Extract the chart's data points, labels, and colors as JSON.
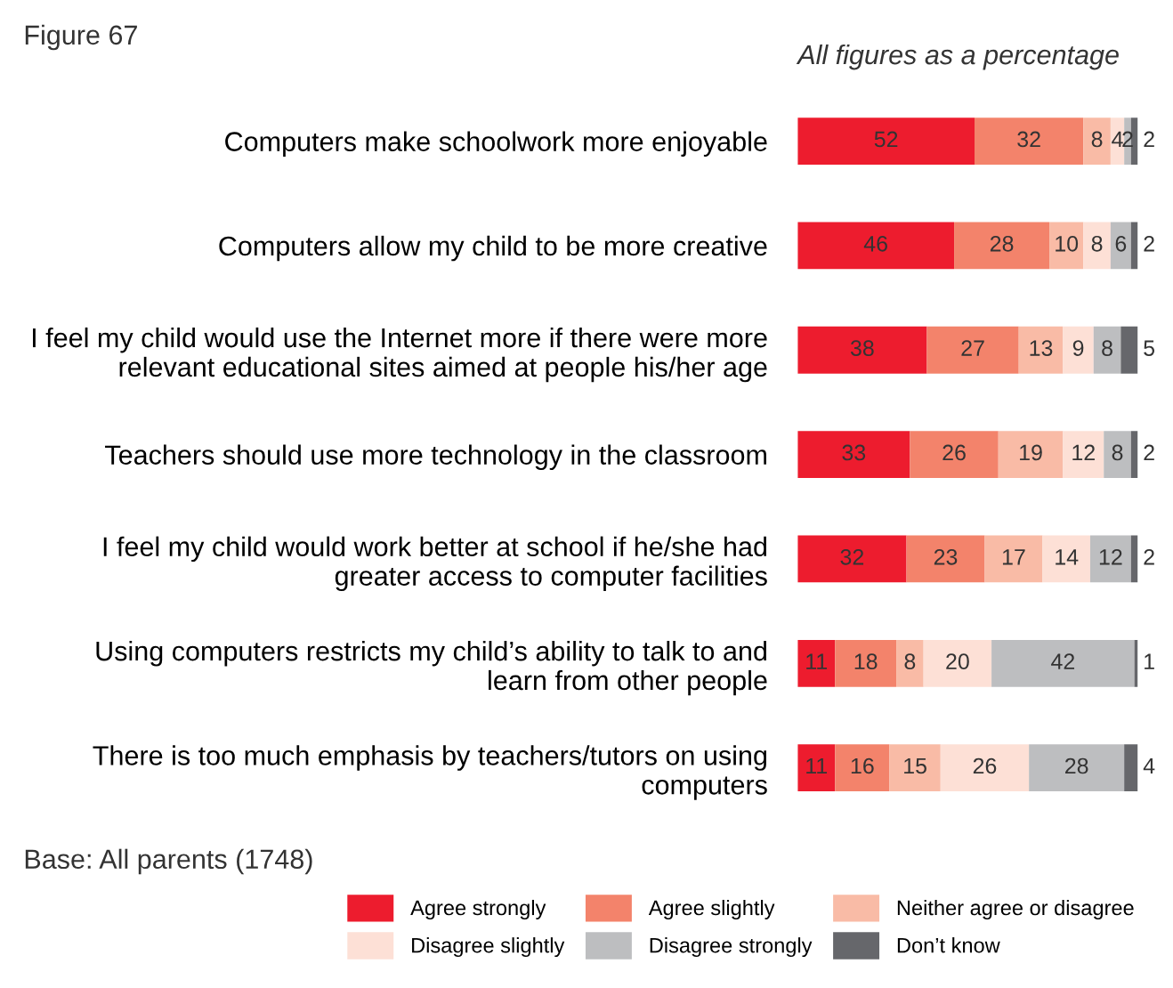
{
  "chart_data": {
    "type": "bar",
    "orientation": "horizontal",
    "stacked": true,
    "title": "Figure 67",
    "subtitle": "All figures as a percentage",
    "categories": [
      "Computers make schoolwork more enjoyable",
      "Computers allow my child to be more creative",
      "I feel my child would use the Internet more if there were more\nrelevant educational sites aimed at people his/her age",
      "Teachers should use more technology in the classroom",
      "I feel my child would work better at school if he/she had\ngreater access to computer facilities",
      "Using computers restricts my child’s ability to talk to and\nlearn from other people",
      "There is too much emphasis by teachers/tutors on using\ncomputers"
    ],
    "series": [
      {
        "name": "Agree strongly",
        "color": "#ed1c2e",
        "values": [
          52,
          46,
          38,
          33,
          32,
          11,
          11
        ]
      },
      {
        "name": "Agree slightly",
        "color": "#f3836b",
        "values": [
          32,
          28,
          27,
          26,
          23,
          18,
          16
        ]
      },
      {
        "name": "Neither agree or disagree",
        "color": "#f9bba6",
        "values": [
          8,
          10,
          13,
          19,
          17,
          8,
          15
        ]
      },
      {
        "name": "Disagree slightly",
        "color": "#fde0d6",
        "values": [
          4,
          8,
          9,
          12,
          14,
          20,
          26
        ]
      },
      {
        "name": "Disagree strongly",
        "color": "#bdbec0",
        "values": [
          2,
          6,
          8,
          8,
          12,
          42,
          28
        ]
      },
      {
        "name": "Don’t know",
        "color": "#66676b",
        "values": [
          2,
          2,
          5,
          2,
          2,
          1,
          4
        ]
      }
    ],
    "xlim": [
      0,
      100
    ],
    "data_labels": true,
    "legend": "bottom",
    "tick_labels": "y",
    "grid": false,
    "annotations": [
      "Base: All parents (1748)"
    ]
  }
}
